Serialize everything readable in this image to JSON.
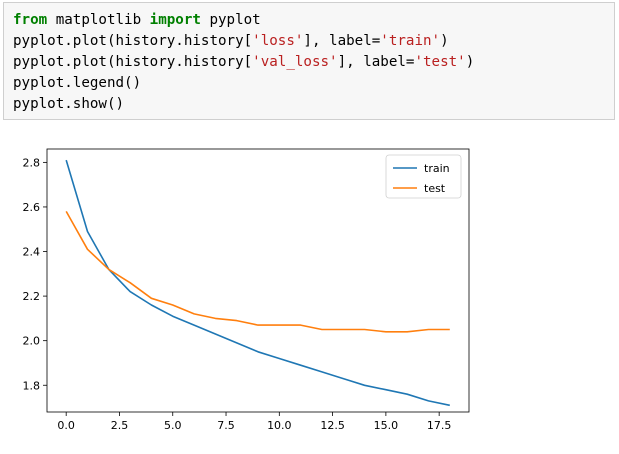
{
  "code": {
    "lines": [
      [
        {
          "t": "from",
          "c": "kw"
        },
        {
          "t": " matplotlib ",
          "c": ""
        },
        {
          "t": "import",
          "c": "kw"
        },
        {
          "t": " pyplot",
          "c": ""
        }
      ],
      [
        {
          "t": "pyplot.plot(history.history[",
          "c": ""
        },
        {
          "t": "'loss'",
          "c": "str"
        },
        {
          "t": "], label=",
          "c": ""
        },
        {
          "t": "'train'",
          "c": "str"
        },
        {
          "t": ")",
          "c": ""
        }
      ],
      [
        {
          "t": "pyplot.plot(history.history[",
          "c": ""
        },
        {
          "t": "'val_loss'",
          "c": "str"
        },
        {
          "t": "], label=",
          "c": ""
        },
        {
          "t": "'test'",
          "c": "str"
        },
        {
          "t": ")",
          "c": ""
        }
      ],
      [
        {
          "t": "pyplot.legend()",
          "c": ""
        }
      ],
      [
        {
          "t": "pyplot.show()",
          "c": ""
        }
      ]
    ]
  },
  "chart_data": {
    "type": "line",
    "x": [
      0,
      1,
      2,
      3,
      4,
      5,
      6,
      7,
      8,
      9,
      10,
      11,
      12,
      13,
      14,
      15,
      16,
      17,
      18
    ],
    "series": [
      {
        "name": "train",
        "color": "#1f77b4",
        "values": [
          2.81,
          2.49,
          2.32,
          2.22,
          2.16,
          2.11,
          2.07,
          2.03,
          1.99,
          1.95,
          1.92,
          1.89,
          1.86,
          1.83,
          1.8,
          1.78,
          1.76,
          1.73,
          1.71
        ]
      },
      {
        "name": "test",
        "color": "#ff7f0e",
        "values": [
          2.58,
          2.41,
          2.32,
          2.26,
          2.19,
          2.16,
          2.12,
          2.1,
          2.09,
          2.07,
          2.07,
          2.07,
          2.05,
          2.05,
          2.05,
          2.04,
          2.04,
          2.05,
          2.05
        ]
      }
    ],
    "xlim": [
      -0.9,
      18.9
    ],
    "ylim": [
      1.68,
      2.86
    ],
    "xticks": [
      0.0,
      2.5,
      5.0,
      7.5,
      10.0,
      12.5,
      15.0,
      17.5
    ],
    "xtick_labels": [
      "0.0",
      "2.5",
      "5.0",
      "7.5",
      "10.0",
      "12.5",
      "15.0",
      "17.5"
    ],
    "yticks": [
      1.8,
      2.0,
      2.2,
      2.4,
      2.6,
      2.8
    ],
    "ytick_labels": [
      "1.8",
      "2.0",
      "2.2",
      "2.4",
      "2.6",
      "2.8"
    ],
    "legend_position": "top-right",
    "grid": false
  }
}
